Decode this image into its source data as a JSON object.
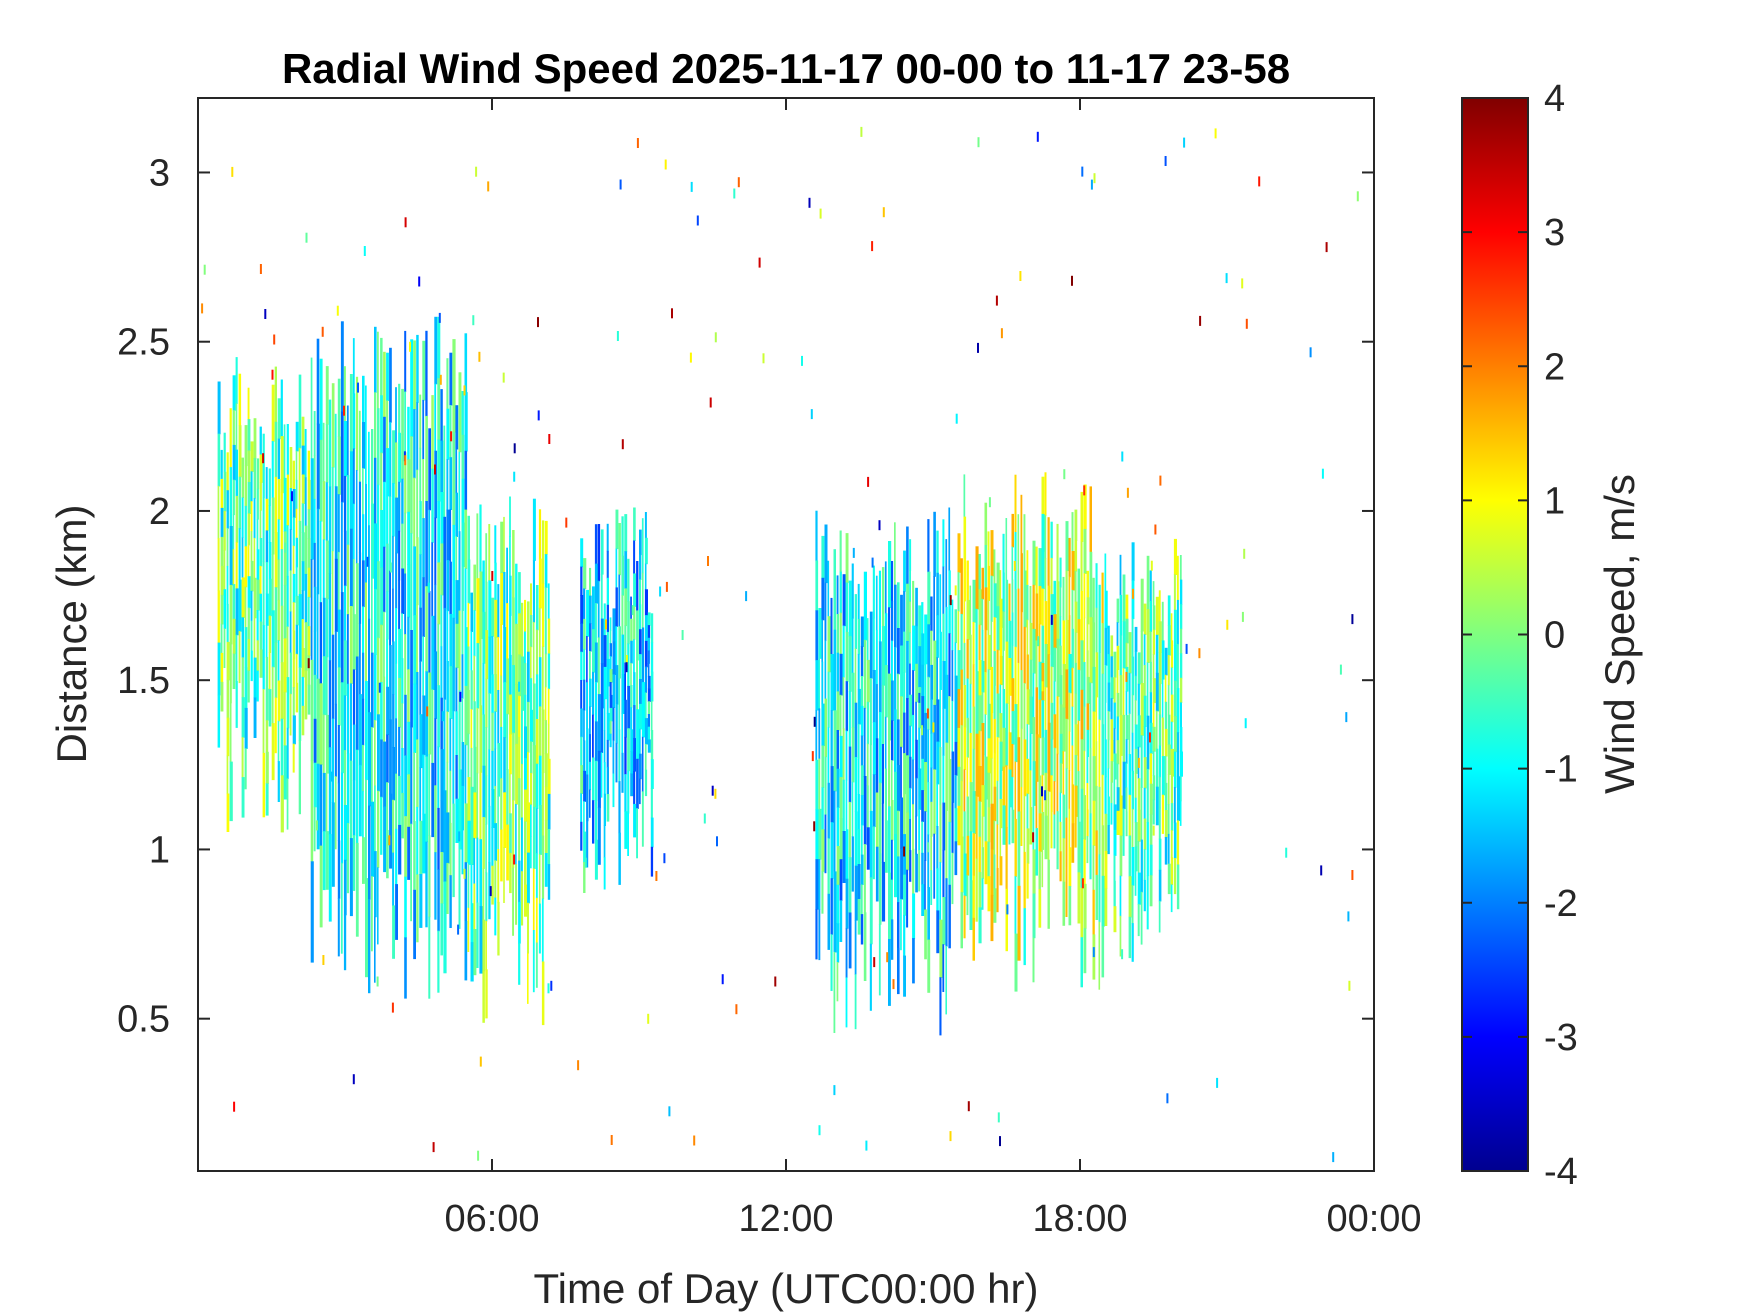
{
  "chart_data": {
    "type": "heatmap",
    "title": "Radial Wind Speed 2025-11-17 00-00 to 11-17 23-58",
    "xlabel": "Time of Day (UTC00:00 hr)",
    "ylabel": "Distance (km)",
    "xlim": [
      0,
      24
    ],
    "ylim": [
      0.05,
      3.22
    ],
    "xticks": [
      6,
      12,
      18,
      24
    ],
    "xticklabels": [
      "06:00",
      "12:00",
      "18:00",
      "00:00"
    ],
    "yticks": [
      0.5,
      1,
      1.5,
      2,
      2.5,
      3
    ],
    "yticklabels": [
      "0.5",
      "1",
      "1.5",
      "2",
      "2.5",
      "3"
    ],
    "colorbar": {
      "label": "Wind Speed, m/s",
      "range": [
        -4,
        4
      ],
      "ticks": [
        4,
        3,
        2,
        1,
        0,
        -1,
        -2,
        -3,
        -4
      ],
      "ticklabels": [
        "4",
        "3",
        "2",
        "1",
        "0",
        "-1",
        "-2",
        "-3",
        "-4"
      ],
      "colormap": "jet"
    },
    "data_blocks": [
      {
        "t_start": 0.4,
        "t_end": 2.3,
        "d_bottom": 1.3,
        "d_top": 2.3,
        "v_mean": -0.3
      },
      {
        "t_start": 2.3,
        "t_end": 5.5,
        "d_bottom": 0.8,
        "d_top": 2.4,
        "v_mean": -1.0
      },
      {
        "t_start": 5.5,
        "t_end": 7.2,
        "d_bottom": 0.7,
        "d_top": 1.9,
        "v_mean": -0.2
      },
      {
        "t_start": 7.8,
        "t_end": 9.3,
        "d_bottom": 1.1,
        "d_top": 1.85,
        "v_mean": -1.3
      },
      {
        "t_start": 12.6,
        "t_end": 15.5,
        "d_bottom": 0.7,
        "d_top": 1.85,
        "v_mean": -1.1
      },
      {
        "t_start": 15.5,
        "t_end": 18.5,
        "d_bottom": 0.8,
        "d_top": 1.95,
        "v_mean": 0.4
      },
      {
        "t_start": 18.5,
        "t_end": 20.1,
        "d_bottom": 0.9,
        "d_top": 1.75,
        "v_mean": -0.3
      }
    ]
  }
}
